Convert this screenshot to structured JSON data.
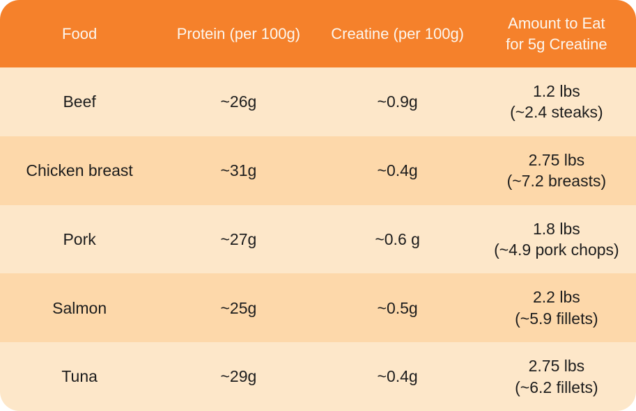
{
  "chart_data": {
    "type": "table",
    "columns": [
      "Food",
      "Protein (per 100g)",
      "Creatine (per 100g)",
      "Amount to Eat for 5g Creatine"
    ],
    "rows": [
      [
        "Beef",
        "~26g",
        "~0.9g",
        "1.2 lbs (~2.4 steaks)"
      ],
      [
        "Chicken breast",
        "~31g",
        "~0.4g",
        "2.75 lbs (~7.2 breasts)"
      ],
      [
        "Pork",
        "~27g",
        "~0.6 g",
        "1.8 lbs (~4.9 pork chops)"
      ],
      [
        "Salmon",
        "~25g",
        "~0.5g",
        "2.2 lbs (~5.9 fillets)"
      ],
      [
        "Tuna",
        "~29g",
        "~0.4g",
        "2.75 lbs (~6.2 fillets)"
      ]
    ]
  },
  "table": {
    "headers": {
      "food": "Food",
      "protein": "Protein (per 100g)",
      "creatine": "Creatine (per 100g)",
      "amount_line1": "Amount to Eat",
      "amount_line2": "for 5g Creatine"
    },
    "rows": [
      {
        "food": "Beef",
        "protein": "~26g",
        "creatine": "~0.9g",
        "amount_line1": "1.2 lbs",
        "amount_line2": "(~2.4 steaks)"
      },
      {
        "food": "Chicken breast",
        "protein": "~31g",
        "creatine": "~0.4g",
        "amount_line1": "2.75 lbs",
        "amount_line2": "(~7.2 breasts)"
      },
      {
        "food": "Pork",
        "protein": "~27g",
        "creatine": "~0.6 g",
        "amount_line1": "1.8 lbs",
        "amount_line2": "(~4.9 pork chops)"
      },
      {
        "food": "Salmon",
        "protein": "~25g",
        "creatine": "~0.5g",
        "amount_line1": "2.2 lbs",
        "amount_line2": "(~5.9 fillets)"
      },
      {
        "food": "Tuna",
        "protein": "~29g",
        "creatine": "~0.4g",
        "amount_line1": "2.75 lbs",
        "amount_line2": "(~6.2 fillets)"
      }
    ]
  },
  "colors": {
    "header_bg": "#F5812B",
    "row_light": "#FDE7C9",
    "row_dark": "#FDD8AA",
    "header_text": "#FCF7F0",
    "body_text": "#1C1C1C"
  }
}
